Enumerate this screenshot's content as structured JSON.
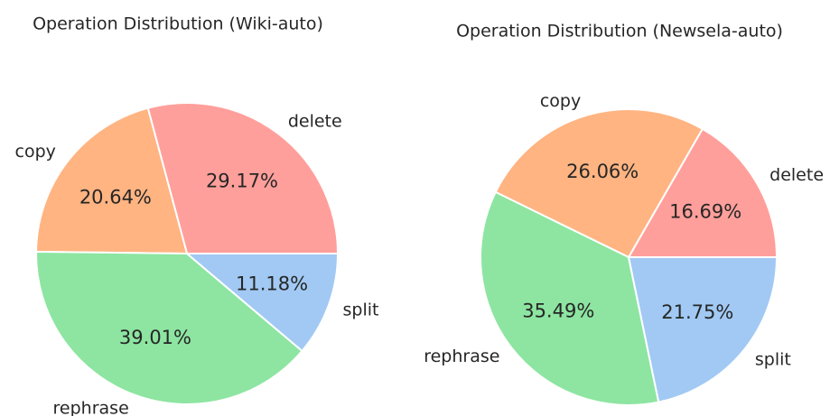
{
  "chart_data": [
    {
      "type": "pie",
      "title": "Operation Distribution (Wiki-auto)",
      "categories": [
        "delete",
        "copy",
        "rephrase",
        "split"
      ],
      "values": [
        29.17,
        20.64,
        39.01,
        11.18
      ],
      "value_labels": [
        "29.17%",
        "20.64%",
        "39.01%",
        "11.18%"
      ],
      "colors": [
        "#ff9f9b",
        "#ffb482",
        "#8de5a1",
        "#a1c9f4"
      ]
    },
    {
      "type": "pie",
      "title": "Operation Distribution (Newsela-auto)",
      "categories": [
        "delete",
        "copy",
        "rephrase",
        "split"
      ],
      "values": [
        16.69,
        26.06,
        35.49,
        21.75
      ],
      "value_labels": [
        "16.69%",
        "26.06%",
        "35.49%",
        "21.75%"
      ],
      "colors": [
        "#ff9f9b",
        "#ffb482",
        "#8de5a1",
        "#a1c9f4"
      ]
    }
  ]
}
